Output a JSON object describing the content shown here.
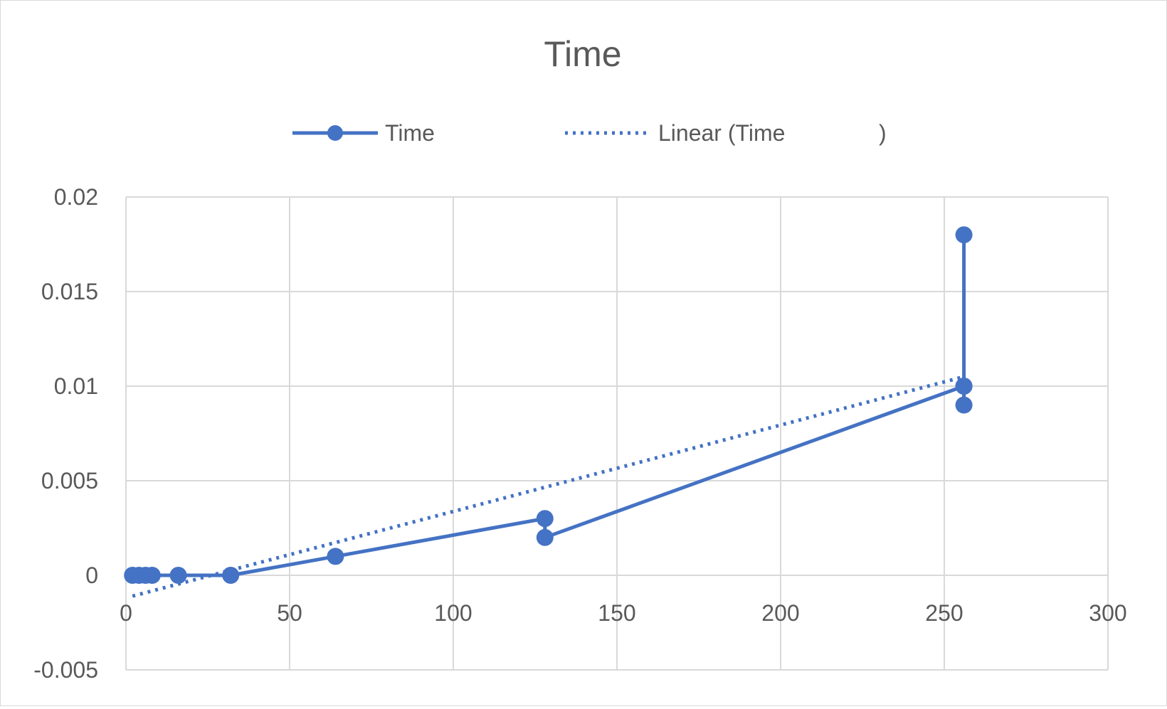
{
  "chart_data": {
    "type": "scatter",
    "title": "Time",
    "xlabel": "",
    "ylabel": "",
    "xlim": [
      0,
      300
    ],
    "ylim": [
      -0.005,
      0.02
    ],
    "x_ticks": [
      "0",
      "50",
      "100",
      "150",
      "200",
      "250",
      "300"
    ],
    "y_ticks": [
      "-0.005",
      "0",
      "0.005",
      "0.01",
      "0.015",
      "0.02"
    ],
    "grid": true,
    "legend_position": "top",
    "legend": {
      "series_label": "Time",
      "trend_label": "Linear (Time",
      "trend_suffix": ")"
    },
    "series": [
      {
        "name": "Time",
        "color": "#4472c4",
        "points": [
          [
            2,
            0
          ],
          [
            4,
            0
          ],
          [
            6,
            0
          ],
          [
            8,
            0
          ],
          [
            16,
            0
          ],
          [
            32,
            0
          ],
          [
            64,
            0.001
          ],
          [
            128,
            0.003
          ],
          [
            128,
            0.002
          ],
          [
            256,
            0.01
          ],
          [
            256,
            0.009
          ],
          [
            256,
            0.018
          ],
          [
            256,
            0.01
          ]
        ]
      }
    ],
    "trendline": {
      "type": "linear",
      "color": "#4472c4",
      "x_range": [
        2,
        256
      ],
      "y_range": [
        -0.0011,
        0.0105
      ]
    }
  }
}
